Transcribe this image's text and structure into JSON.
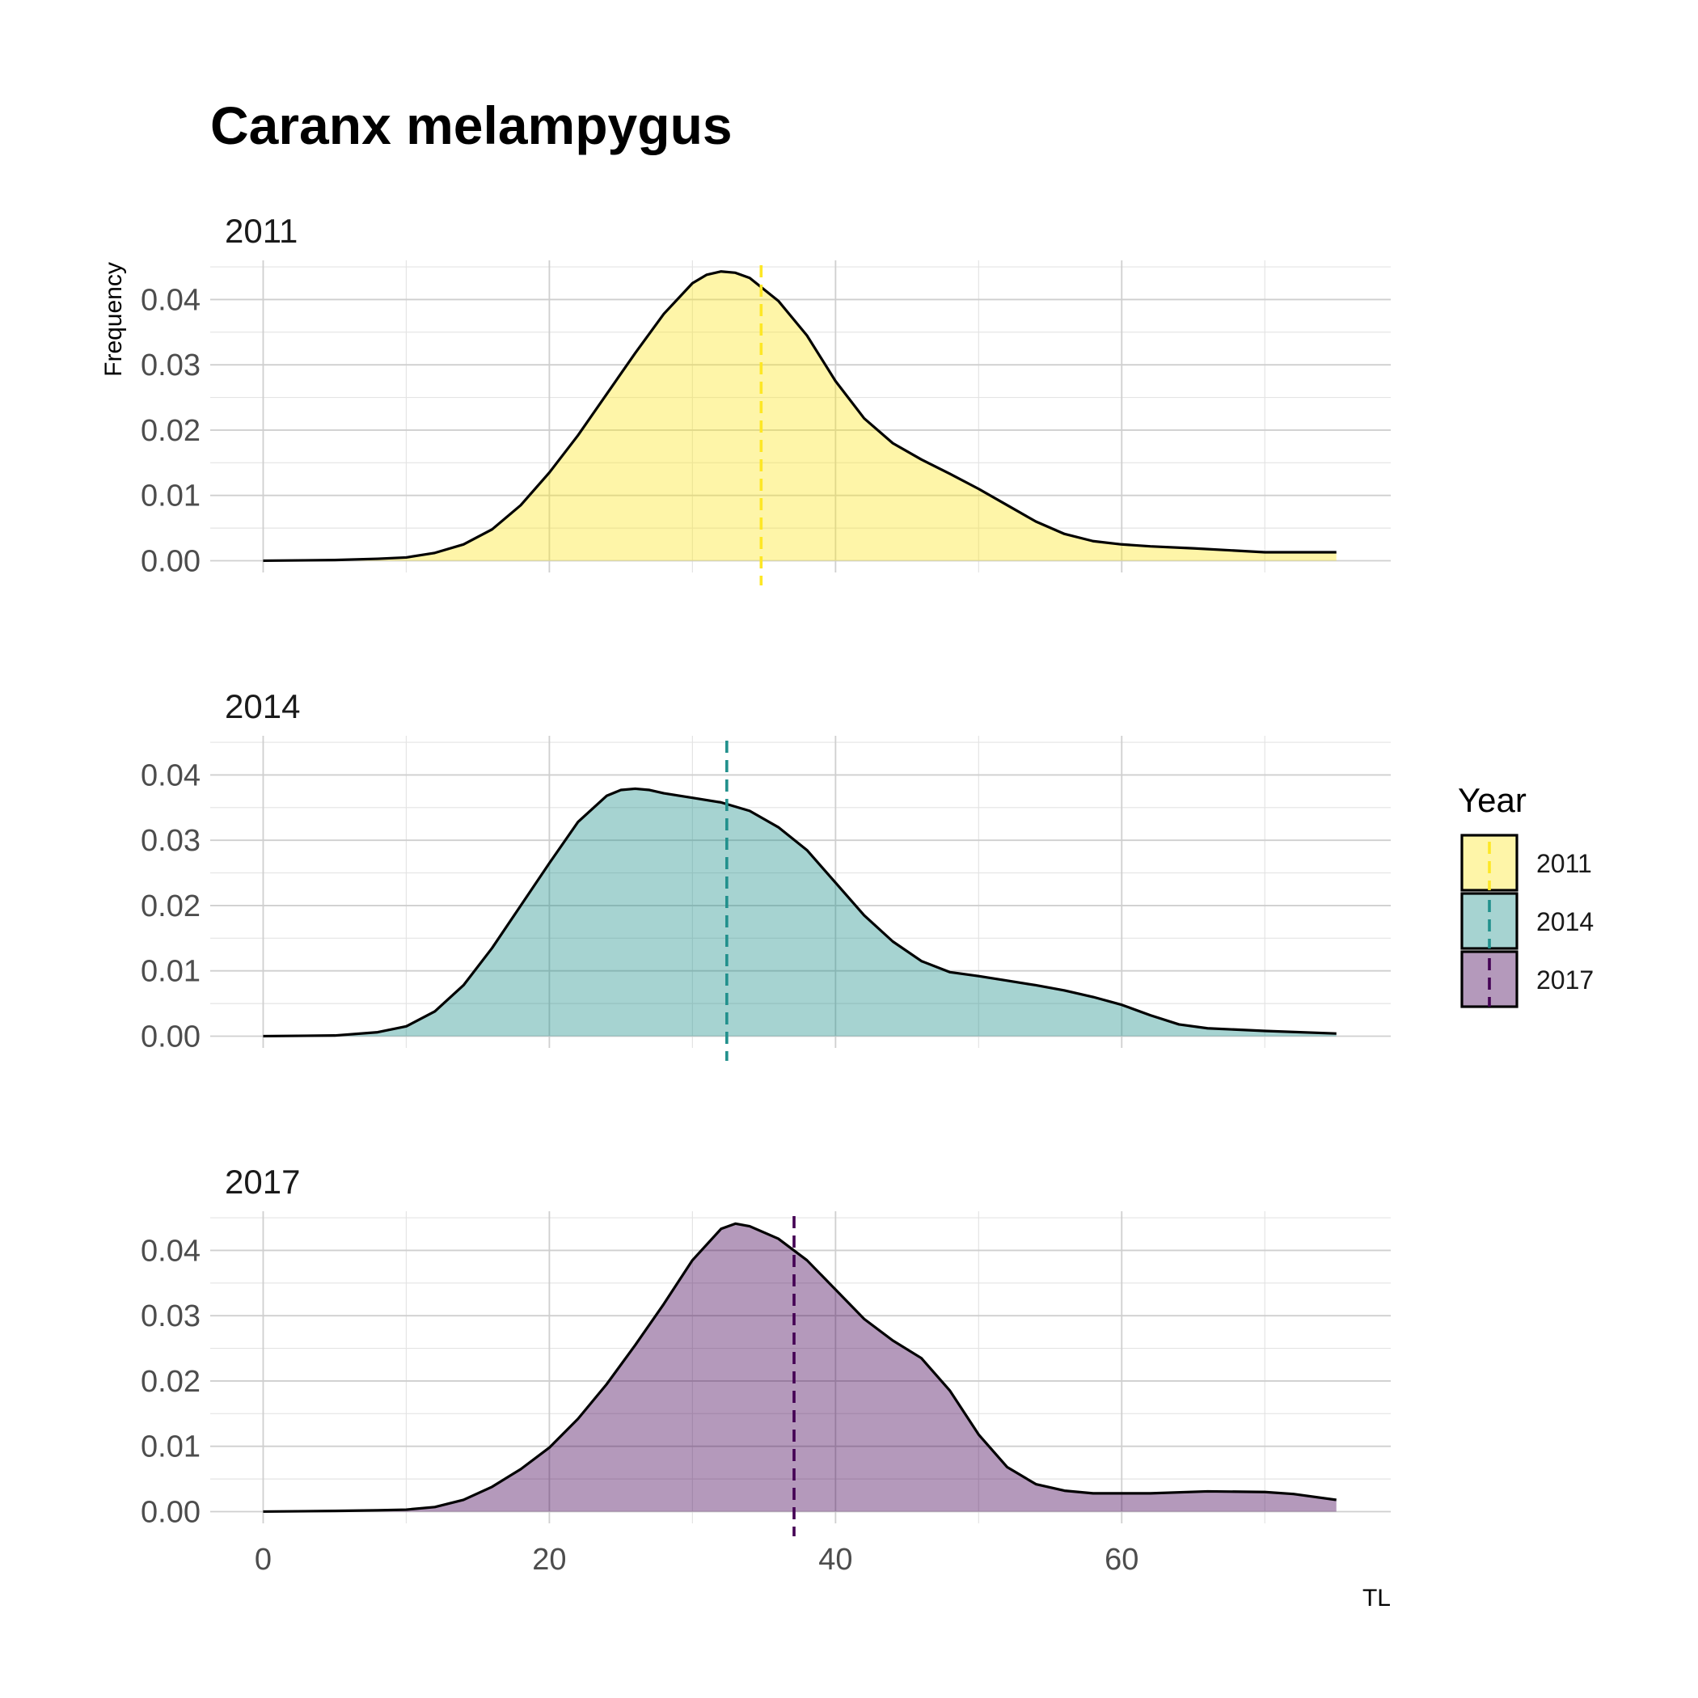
{
  "chart_data": {
    "type": "area",
    "title": "Caranx melampygus",
    "xlabel": "TL",
    "ylabel": "Frequency",
    "xlim": [
      -3.7,
      78.8
    ],
    "ylim": [
      -0.0018,
      0.046
    ],
    "x_ticks": [
      0,
      20,
      40,
      60
    ],
    "y_ticks": [
      0.0,
      0.01,
      0.02,
      0.03,
      0.04
    ],
    "y_tick_labels": [
      "0.00",
      "0.01",
      "0.02",
      "0.03",
      "0.04"
    ],
    "grid": true,
    "legend": {
      "title": "Year",
      "placement": "right",
      "entries": [
        "2011",
        "2014",
        "2017"
      ]
    },
    "panels": [
      {
        "name": "2011",
        "fill": "#FDE725",
        "line_color": "#FDE725",
        "mean": 34.8,
        "x": [
          0,
          5,
          8,
          10,
          12,
          14,
          16,
          18,
          20,
          22,
          24,
          26,
          28,
          30,
          31,
          32,
          33,
          34,
          36,
          38,
          40,
          42,
          44,
          46,
          48,
          50,
          52,
          54,
          56,
          58,
          60,
          62,
          65,
          70,
          75
        ],
        "values": [
          0,
          0.0001,
          0.0003,
          0.0005,
          0.0012,
          0.0025,
          0.0048,
          0.0085,
          0.0135,
          0.0192,
          0.0255,
          0.0318,
          0.0378,
          0.0425,
          0.0438,
          0.0443,
          0.0441,
          0.0433,
          0.0398,
          0.0345,
          0.0275,
          0.0218,
          0.018,
          0.0155,
          0.0133,
          0.011,
          0.0085,
          0.006,
          0.0041,
          0.003,
          0.0025,
          0.0022,
          0.0019,
          0.0013,
          0.0013
        ]
      },
      {
        "name": "2014",
        "fill": "#21908C",
        "line_color": "#21908C",
        "mean": 32.4,
        "x": [
          0,
          5,
          8,
          10,
          12,
          14,
          16,
          18,
          20,
          22,
          24,
          25,
          26,
          27,
          28,
          30,
          32,
          34,
          36,
          38,
          40,
          42,
          44,
          46,
          48,
          50,
          52,
          54,
          56,
          58,
          60,
          62,
          64,
          66,
          70,
          75
        ],
        "values": [
          0,
          0.0001,
          0.0006,
          0.0015,
          0.0038,
          0.0078,
          0.0135,
          0.02,
          0.0265,
          0.0328,
          0.0368,
          0.0377,
          0.0379,
          0.0377,
          0.0372,
          0.0365,
          0.0358,
          0.0345,
          0.032,
          0.0285,
          0.0235,
          0.0185,
          0.0145,
          0.0115,
          0.0098,
          0.0092,
          0.0085,
          0.0078,
          0.007,
          0.006,
          0.0048,
          0.0032,
          0.0018,
          0.0012,
          0.0008,
          0.0004
        ]
      },
      {
        "name": "2017",
        "fill": "#440154",
        "line_color": "#440154",
        "mean": 37.1,
        "x": [
          0,
          5,
          8,
          10,
          12,
          14,
          16,
          18,
          20,
          22,
          24,
          26,
          28,
          30,
          32,
          33,
          34,
          36,
          38,
          40,
          42,
          44,
          46,
          48,
          50,
          52,
          54,
          56,
          58,
          60,
          62,
          66,
          70,
          72,
          75
        ],
        "values": [
          0,
          0.0001,
          0.0002,
          0.0003,
          0.0007,
          0.0018,
          0.0038,
          0.0065,
          0.0098,
          0.0142,
          0.0195,
          0.0255,
          0.0318,
          0.0385,
          0.0433,
          0.0441,
          0.0437,
          0.0418,
          0.0385,
          0.034,
          0.0295,
          0.0262,
          0.0235,
          0.0185,
          0.0118,
          0.0068,
          0.0042,
          0.0032,
          0.0028,
          0.0028,
          0.0028,
          0.0031,
          0.003,
          0.0027,
          0.0018
        ]
      }
    ]
  }
}
